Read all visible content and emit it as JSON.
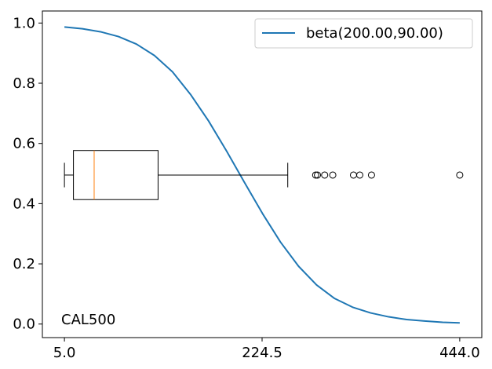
{
  "chart_data": {
    "type": "line",
    "title": "",
    "xlabel": "",
    "ylabel": "",
    "xlim": [
      -19.5,
      468.5
    ],
    "ylim": [
      -0.045,
      1.04
    ],
    "x_ticks": [
      5.0,
      224.5,
      444.0
    ],
    "x_tick_labels": [
      "5.0",
      "224.5",
      "444.0"
    ],
    "y_ticks": [
      0.0,
      0.2,
      0.4,
      0.6,
      0.8,
      1.0
    ],
    "y_tick_labels": [
      "0.0",
      "0.2",
      "0.4",
      "0.6",
      "0.8",
      "1.0"
    ],
    "grid": false,
    "legend": {
      "position": "top-right",
      "entries": [
        "beta(200.00,90.00)"
      ]
    },
    "series": [
      {
        "name": "beta(200.00,90.00)",
        "color": "#1f77b4",
        "x": [
          5,
          25,
          45,
          65,
          85,
          105,
          125,
          145,
          165,
          185,
          205,
          225,
          245,
          265,
          285,
          305,
          325,
          345,
          365,
          385,
          405,
          425,
          444
        ],
        "y": [
          0.987,
          0.981,
          0.971,
          0.955,
          0.93,
          0.892,
          0.838,
          0.763,
          0.675,
          0.575,
          0.47,
          0.367,
          0.272,
          0.192,
          0.13,
          0.085,
          0.056,
          0.037,
          0.024,
          0.015,
          0.01,
          0.006,
          0.004
        ]
      }
    ],
    "boxplot": {
      "y_position": 0.495,
      "box_height": 0.163,
      "whisker_low": 5.0,
      "q1": 15.0,
      "median": 38.0,
      "q3": 109.0,
      "whisker_high": 253.0,
      "outliers": [
        284,
        286,
        294,
        303,
        326,
        333,
        346,
        444
      ],
      "box_color": "#000000",
      "median_color": "#ff7f0e",
      "outlier_marker": "open-circle"
    },
    "annotations": [
      {
        "text": "CAL500",
        "position": "bottom-left"
      }
    ]
  }
}
